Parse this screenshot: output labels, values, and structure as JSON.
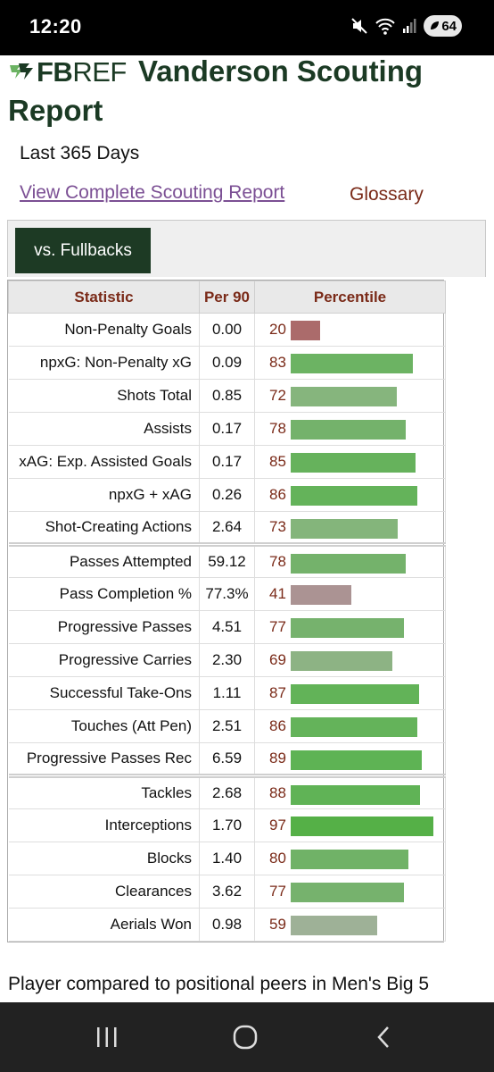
{
  "status_bar": {
    "time": "12:20",
    "battery": "64"
  },
  "header": {
    "logo_text_bold": "FB",
    "logo_text_light": "REF",
    "title": "Vanderson Scouting Report"
  },
  "period": "Last 365 Days",
  "links": {
    "full_report": "View Complete Scouting Report",
    "glossary": "Glossary"
  },
  "filter": {
    "active_tab": "vs. Fullbacks"
  },
  "table": {
    "headers": {
      "statistic": "Statistic",
      "per90": "Per 90",
      "percentile": "Percentile"
    },
    "rows": [
      {
        "stat": "Non-Penalty Goals",
        "per90": "0.00",
        "percentile": 20,
        "color": "#ab6b6b",
        "group_start": false
      },
      {
        "stat": "npxG: Non-Penalty xG",
        "per90": "0.09",
        "percentile": 83,
        "color": "#6cb363",
        "group_start": false
      },
      {
        "stat": "Shots Total",
        "per90": "0.85",
        "percentile": 72,
        "color": "#86b57d",
        "group_start": false
      },
      {
        "stat": "Assists",
        "per90": "0.17",
        "percentile": 78,
        "color": "#74b26b",
        "group_start": false
      },
      {
        "stat": "xAG: Exp. Assisted Goals",
        "per90": "0.17",
        "percentile": 85,
        "color": "#66b25c",
        "group_start": false
      },
      {
        "stat": "npxG + xAG",
        "per90": "0.26",
        "percentile": 86,
        "color": "#64b35a",
        "group_start": false
      },
      {
        "stat": "Shot-Creating Actions",
        "per90": "2.64",
        "percentile": 73,
        "color": "#84b57b",
        "group_start": false
      },
      {
        "stat": "Passes Attempted",
        "per90": "59.12",
        "percentile": 78,
        "color": "#74b26b",
        "group_start": true
      },
      {
        "stat": "Pass Completion %",
        "per90": "77.3%",
        "percentile": 41,
        "color": "#ab9393",
        "group_start": false
      },
      {
        "stat": "Progressive Passes",
        "per90": "4.51",
        "percentile": 77,
        "color": "#76b26d",
        "group_start": false
      },
      {
        "stat": "Progressive Carries",
        "per90": "2.30",
        "percentile": 69,
        "color": "#8db384",
        "group_start": false
      },
      {
        "stat": "Successful Take-Ons",
        "per90": "1.11",
        "percentile": 87,
        "color": "#62b358",
        "group_start": false
      },
      {
        "stat": "Touches (Att Pen)",
        "per90": "2.51",
        "percentile": 86,
        "color": "#64b35a",
        "group_start": false
      },
      {
        "stat": "Progressive Passes Rec",
        "per90": "6.59",
        "percentile": 89,
        "color": "#5eb354",
        "group_start": false
      },
      {
        "stat": "Tackles",
        "per90": "2.68",
        "percentile": 88,
        "color": "#60b356",
        "group_start": true
      },
      {
        "stat": "Interceptions",
        "per90": "1.70",
        "percentile": 97,
        "color": "#55b047",
        "group_start": false
      },
      {
        "stat": "Blocks",
        "per90": "1.40",
        "percentile": 80,
        "color": "#70b267",
        "group_start": false
      },
      {
        "stat": "Clearances",
        "per90": "3.62",
        "percentile": 77,
        "color": "#76b26d",
        "group_start": false
      },
      {
        "stat": "Aerials Won",
        "per90": "0.98",
        "percentile": 59,
        "color": "#9eb197",
        "group_start": false
      }
    ]
  },
  "footnote": "Player compared to positional peers in Men's Big 5",
  "nav": {
    "icons": [
      "recent-apps-icon",
      "home-icon",
      "back-icon"
    ]
  }
}
